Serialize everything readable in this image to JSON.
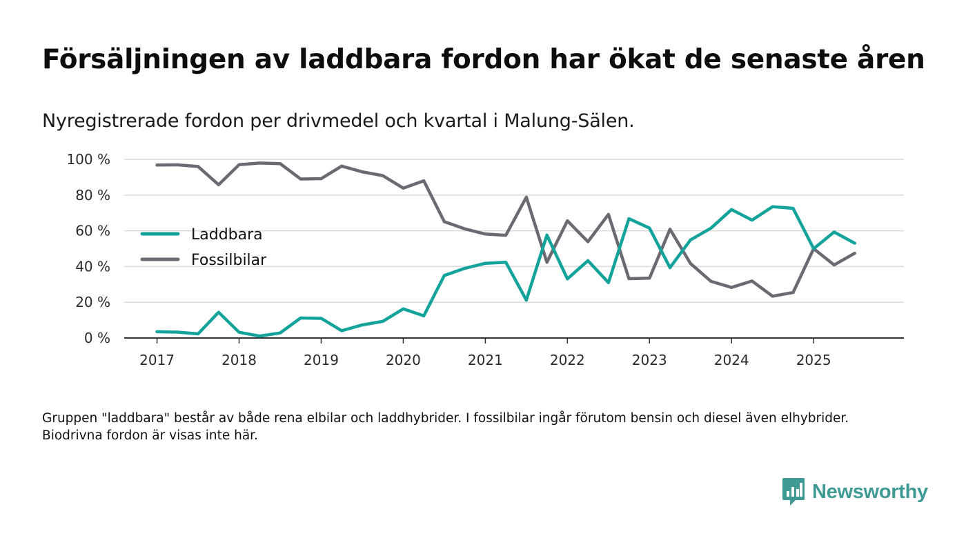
{
  "header": {
    "title": "Försäljningen av laddbara fordon har ökat de senaste åren",
    "subtitle": "Nyregistrerade fordon per drivmedel och kvartal i Malung-Sälen."
  },
  "footer": {
    "note": "Gruppen \"laddbara\" består av både rena elbilar och laddhybrider. I fossilbilar ingår förutom bensin och diesel även elhybrider. Biodrivna fordon är visas inte här.",
    "brand": "Newsworthy",
    "brand_icon": "bar-chart-speech-bubble-icon",
    "brand_color": "#3f9a94"
  },
  "chart_data": {
    "type": "line",
    "title": "Försäljningen av laddbara fordon har ökat de senaste åren",
    "xlabel": "",
    "ylabel": "",
    "x_ticks": [
      "2017",
      "2018",
      "2019",
      "2020",
      "2021",
      "2022",
      "2023",
      "2024",
      "2025"
    ],
    "y_ticks": [
      0,
      20,
      40,
      60,
      80,
      100
    ],
    "y_tick_labels": [
      "0 %",
      "20 %",
      "40 %",
      "60 %",
      "80 %",
      "100 %"
    ],
    "ylim": [
      0,
      100
    ],
    "xlim": [
      2016.6,
      2026.1
    ],
    "grid": true,
    "legend_position": "middle-left",
    "x": [
      2017.0,
      2017.25,
      2017.5,
      2017.75,
      2018.0,
      2018.25,
      2018.5,
      2018.75,
      2019.0,
      2019.25,
      2019.5,
      2019.75,
      2020.0,
      2020.25,
      2020.5,
      2020.75,
      2021.0,
      2021.25,
      2021.5,
      2021.75,
      2022.0,
      2022.25,
      2022.5,
      2022.75,
      2023.0,
      2023.25,
      2023.5,
      2023.75,
      2024.0,
      2024.25,
      2024.5,
      2024.75,
      2025.0,
      2025.25,
      2025.5
    ],
    "series": [
      {
        "name": "Laddbara",
        "color": "#14a39a",
        "values": [
          3.5,
          3.3,
          2.3,
          14.4,
          3.2,
          1.1,
          2.8,
          11.2,
          11.0,
          4.1,
          7.3,
          9.3,
          16.3,
          12.4,
          35.0,
          39.0,
          41.8,
          42.4,
          21.2,
          57.6,
          33.1,
          43.3,
          31.0,
          66.8,
          61.5,
          39.4,
          54.9,
          61.5,
          71.9,
          66.0,
          73.5,
          72.6,
          50.0,
          59.3,
          53.1
        ]
      },
      {
        "name": "Fossilbilar",
        "color": "#6b6a72",
        "values": [
          96.8,
          96.9,
          96.0,
          85.8,
          97.0,
          97.9,
          97.6,
          89.0,
          89.2,
          96.2,
          93.0,
          90.9,
          83.9,
          88.0,
          65.1,
          61.1,
          58.2,
          57.5,
          78.8,
          42.4,
          65.6,
          53.9,
          69.2,
          33.2,
          33.5,
          60.9,
          41.7,
          31.7,
          28.3,
          31.9,
          23.4,
          25.5,
          50.0,
          40.9,
          47.4
        ]
      }
    ]
  }
}
